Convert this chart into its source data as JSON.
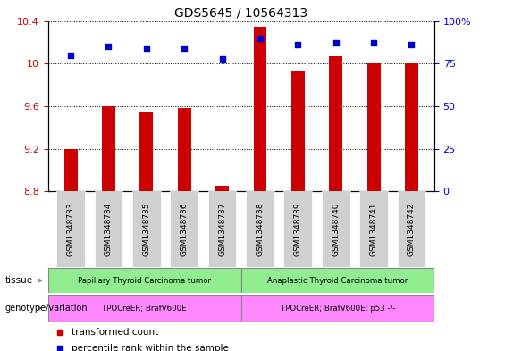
{
  "title": "GDS5645 / 10564313",
  "samples": [
    "GSM1348733",
    "GSM1348734",
    "GSM1348735",
    "GSM1348736",
    "GSM1348737",
    "GSM1348738",
    "GSM1348739",
    "GSM1348740",
    "GSM1348741",
    "GSM1348742"
  ],
  "bar_values": [
    9.2,
    9.6,
    9.55,
    9.58,
    8.85,
    10.35,
    9.93,
    10.07,
    10.01,
    10.0
  ],
  "dot_values": [
    80,
    85,
    84,
    84,
    78,
    90,
    86,
    87,
    87,
    86
  ],
  "ylim_left": [
    8.8,
    10.4
  ],
  "ylim_right": [
    0,
    100
  ],
  "yticks_left": [
    8.8,
    9.2,
    9.6,
    10.0,
    10.4
  ],
  "yticks_right": [
    0,
    25,
    50,
    75,
    100
  ],
  "ytick_labels_left": [
    "8.8",
    "9.2",
    "9.6",
    "10",
    "10.4"
  ],
  "ytick_labels_right": [
    "0",
    "25",
    "50",
    "75",
    "100%"
  ],
  "bar_color": "#cc0000",
  "dot_color": "#0000cc",
  "bar_bottom": 8.8,
  "tissue_labels": [
    "Papillary Thyroid Carcinoma tumor",
    "Anaplastic Thyroid Carcinoma tumor"
  ],
  "tissue_color": "#90ee90",
  "genotype_labels": [
    "TPOCreER; BrafV600E",
    "TPOCreER; BrafV600E; p53 -/-"
  ],
  "genotype_color": "#ff88ff",
  "group1_count": 5,
  "group2_count": 5,
  "legend_items": [
    {
      "label": "transformed count",
      "color": "#cc0000"
    },
    {
      "label": "percentile rank within the sample",
      "color": "#0000cc"
    }
  ],
  "title_fontsize": 10,
  "tick_label_color_left": "#cc0000",
  "tick_label_color_right": "#0000cc",
  "xtick_bg_color": "#d0d0d0"
}
